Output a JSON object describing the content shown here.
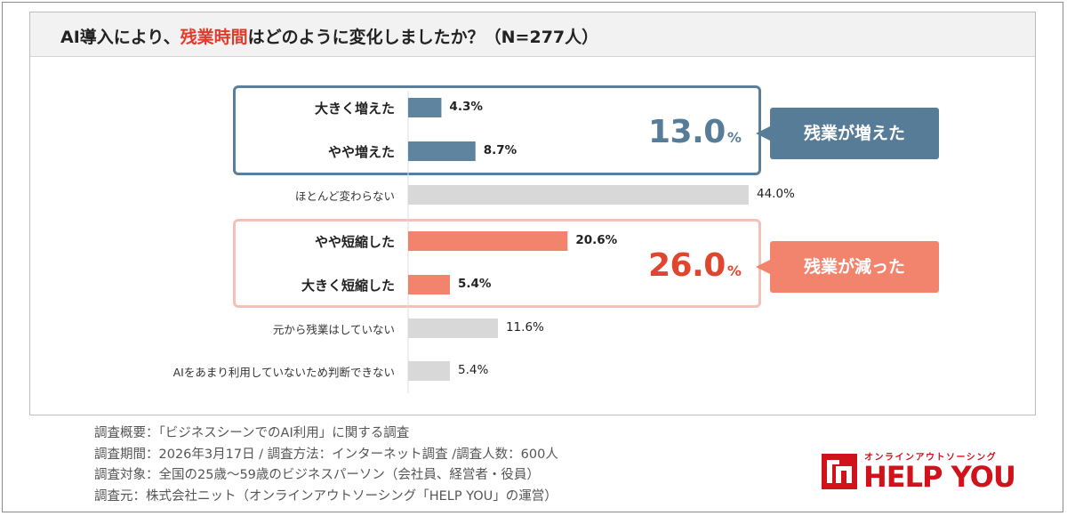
{
  "title": {
    "prefix": "AI導入により、",
    "highlight": "残業時間",
    "suffix": "はどのように変化しましたか？（N=277人）"
  },
  "chart_data": {
    "type": "bar",
    "orientation": "horizontal",
    "unit": "%",
    "categories": [
      "大きく増えた",
      "やや増えた",
      "ほとんど変わらない",
      "やや短縮した",
      "大きく短縮した",
      "元から残業はしていない",
      "AIをあまり利用していないため判断できない"
    ],
    "values": [
      4.3,
      8.7,
      44.0,
      20.6,
      5.4,
      11.6,
      5.4
    ],
    "value_labels": [
      "4.3%",
      "8.7%",
      "44.0%",
      "20.6%",
      "5.4%",
      "11.6%",
      "5.4%"
    ],
    "bar_colors": [
      "#5f84a0",
      "#5f84a0",
      "#d7d8d7",
      "#f2846e",
      "#f2846e",
      "#d7d8d7",
      "#d7d8d7"
    ],
    "emphasized": [
      true,
      true,
      false,
      true,
      true,
      false,
      false
    ],
    "xlim": [
      0,
      50
    ],
    "groups": [
      {
        "label": "残業が増えた",
        "total": "13.0",
        "unit": "%",
        "color": "#567c98"
      },
      {
        "label": "残業が減った",
        "total": "26.0",
        "unit": "%",
        "color": "#e0452e"
      }
    ]
  },
  "notes": [
    "調査概要：「ビジネスシーンでのAI利用」に関する調査",
    "調査期間：2026年3月17日 / 調査方法：インターネット調査 /調査人数：600人",
    "調査対象：全国の25歳〜59歳のビジネスパーソン（会社員、経営者・役員）",
    "調査元：株式会社ニット（オンラインアウトソーシング「HELP YOU」の運営）"
  ],
  "logo": {
    "tagline": "オンラインアウトソーシング",
    "name": "HELP YOU",
    "mark_icon": "help-you-logo-mark-icon",
    "brand_color": "#d0121b"
  },
  "colors": {
    "increase": "#567c98",
    "decrease": "#e0452e",
    "decrease_light": "#f2846e",
    "neutral": "#d7d8d7"
  }
}
